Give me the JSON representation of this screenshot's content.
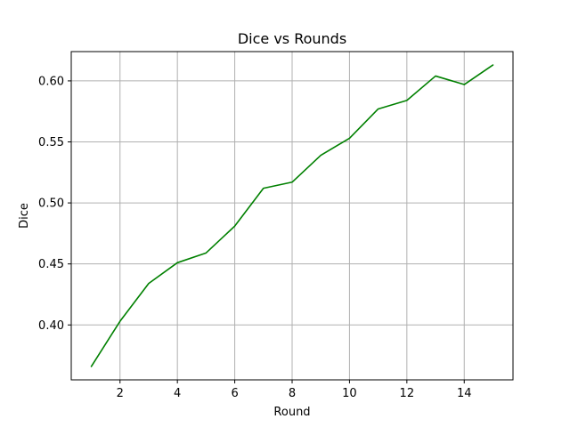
{
  "chart_data": {
    "type": "line",
    "title": "Dice vs Rounds",
    "xlabel": "Round",
    "ylabel": "Dice",
    "xlim": [
      0.3,
      15.7
    ],
    "ylim": [
      0.355,
      0.624
    ],
    "xticks": [
      2,
      4,
      6,
      8,
      10,
      12,
      14
    ],
    "xtick_labels": [
      "2",
      "4",
      "6",
      "8",
      "10",
      "12",
      "14"
    ],
    "yticks": [
      0.4,
      0.45,
      0.5,
      0.55,
      0.6
    ],
    "ytick_labels": [
      "0.40",
      "0.45",
      "0.50",
      "0.55",
      "0.60"
    ],
    "grid": true,
    "x": [
      1,
      2,
      3,
      4,
      5,
      6,
      7,
      8,
      9,
      10,
      11,
      12,
      13,
      14,
      15
    ],
    "series": [
      {
        "values": [
          0.366,
          0.403,
          0.434,
          0.451,
          0.459,
          0.481,
          0.512,
          0.517,
          0.539,
          0.553,
          0.577,
          0.584,
          0.604,
          0.597,
          0.613
        ],
        "color": "#008000"
      }
    ]
  }
}
